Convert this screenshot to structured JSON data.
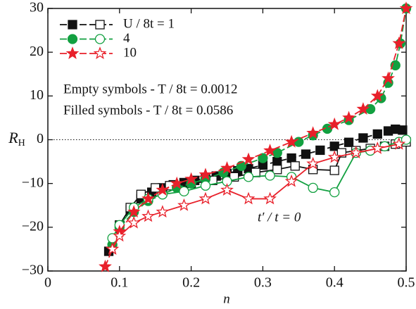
{
  "chart_data": {
    "type": "line",
    "xlabel": "n",
    "ylabel": "R",
    "ylabel_sub": "H",
    "xlim": [
      0,
      0.5
    ],
    "ylim": [
      -30,
      30
    ],
    "xticks": [
      0,
      0.1,
      0.2,
      0.3,
      0.4,
      0.5
    ],
    "yticks": [
      {
        "value": -30,
        "label": "−30"
      },
      {
        "value": -20,
        "label": "−20"
      },
      {
        "value": -10,
        "label": "−10"
      },
      0,
      10,
      20,
      30
    ],
    "hline": 0,
    "annotations": [
      "Empty symbols - T / 8t = 0.0012",
      "Filled symbols - T / 8t = 0.0586",
      "t′ / t = 0"
    ],
    "series": [
      {
        "name": "U / 8t = 1",
        "color": "#111111",
        "marker": "square",
        "filled": true,
        "x": [
          0.085,
          0.1,
          0.115,
          0.13,
          0.145,
          0.16,
          0.175,
          0.19,
          0.205,
          0.22,
          0.235,
          0.25,
          0.265,
          0.28,
          0.3,
          0.32,
          0.34,
          0.36,
          0.38,
          0.4,
          0.42,
          0.44,
          0.46,
          0.475,
          0.485,
          0.495
        ],
        "values": [
          -25.5,
          -19.5,
          -16,
          -13.5,
          -12,
          -11,
          -10.3,
          -9.8,
          -9.3,
          -8.8,
          -8.3,
          -7.7,
          -7.1,
          -6.6,
          -5.8,
          -5,
          -4.2,
          -3.3,
          -2.4,
          -1.5,
          -0.6,
          0.4,
          1.3,
          2,
          2.4,
          2.2
        ]
      },
      {
        "color": "#111111",
        "marker": "square",
        "filled": false,
        "x": [
          0.1,
          0.115,
          0.13,
          0.15,
          0.17,
          0.2,
          0.23,
          0.26,
          0.29,
          0.32,
          0.345,
          0.37,
          0.4,
          0.41,
          0.43,
          0.45,
          0.47,
          0.485,
          0.5
        ],
        "values": [
          -19.5,
          -15.5,
          -12.5,
          -11,
          -10.5,
          -10,
          -9.3,
          -8.5,
          -7.5,
          -6.8,
          -6,
          -6.8,
          -7,
          -3,
          -2.5,
          -2,
          -1.5,
          -1,
          -0.5
        ]
      },
      {
        "name": "4",
        "color": "#12a040",
        "marker": "circle",
        "filled": true,
        "x": [
          0.09,
          0.1,
          0.12,
          0.14,
          0.16,
          0.18,
          0.2,
          0.22,
          0.245,
          0.27,
          0.3,
          0.32,
          0.35,
          0.37,
          0.39,
          0.42,
          0.45,
          0.465,
          0.475,
          0.485,
          0.492,
          0.5
        ],
        "values": [
          -24,
          -20,
          -16.5,
          -14,
          -12.5,
          -11,
          -10,
          -9,
          -7.5,
          -6,
          -4.2,
          -3,
          -0.5,
          1,
          2.5,
          4.5,
          7,
          9.5,
          13,
          17,
          22,
          30
        ]
      },
      {
        "color": "#12a040",
        "marker": "circle",
        "filled": false,
        "x": [
          0.09,
          0.1,
          0.12,
          0.14,
          0.16,
          0.19,
          0.22,
          0.25,
          0.28,
          0.31,
          0.34,
          0.37,
          0.4,
          0.43,
          0.45,
          0.47,
          0.49,
          0.5
        ],
        "values": [
          -22.5,
          -19.5,
          -15.5,
          -13.5,
          -12.5,
          -11.8,
          -10.5,
          -9.5,
          -8.5,
          -8.2,
          -8.5,
          -11,
          -12,
          -3,
          -2.5,
          -1.5,
          -0.5,
          0
        ]
      },
      {
        "name": "10",
        "color": "#e8202a",
        "marker": "star",
        "filled": true,
        "x": [
          0.08,
          0.09,
          0.1,
          0.12,
          0.14,
          0.16,
          0.18,
          0.2,
          0.22,
          0.25,
          0.28,
          0.31,
          0.34,
          0.37,
          0.4,
          0.42,
          0.44,
          0.46,
          0.475,
          0.49,
          0.5
        ],
        "values": [
          -29,
          -25,
          -21,
          -16.5,
          -13.5,
          -11.5,
          -10,
          -9,
          -8,
          -6.5,
          -4.5,
          -2.5,
          -0.5,
          1.5,
          3.5,
          5,
          7,
          10,
          14,
          22,
          30
        ]
      },
      {
        "color": "#e8202a",
        "marker": "star",
        "filled": false,
        "x": [
          0.09,
          0.1,
          0.12,
          0.14,
          0.16,
          0.19,
          0.22,
          0.25,
          0.28,
          0.31,
          0.34,
          0.37,
          0.4,
          0.43,
          0.46,
          0.49
        ],
        "values": [
          -25,
          -22,
          -19,
          -17.5,
          -16.5,
          -15,
          -13.5,
          -11.5,
          -13.5,
          -13.5,
          -9.5,
          -5.5,
          -4,
          -3,
          -2,
          -1
        ]
      }
    ]
  }
}
